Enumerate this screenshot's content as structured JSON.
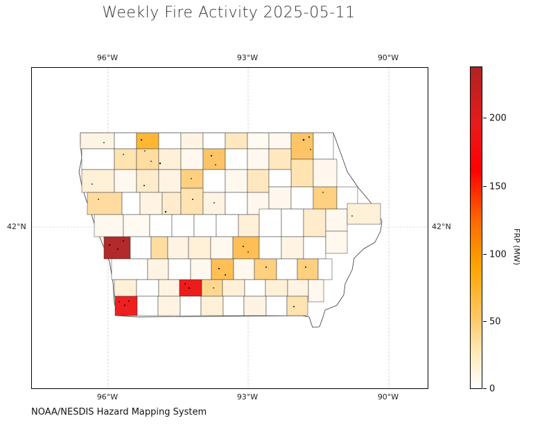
{
  "title": "Weekly Fire Activity 2025-05-11",
  "source": "NOAA/NESDIS Hazard Mapping System",
  "map": {
    "lon_ticks": [
      "96°W",
      "93°W",
      "90°W"
    ],
    "lat_ticks": [
      "42°N"
    ],
    "region": "Iowa counties"
  },
  "colorbar": {
    "label": "FRP (MW)",
    "ticks": [
      "0",
      "50",
      "100",
      "150",
      "200"
    ],
    "range": [
      0,
      237
    ],
    "colors": [
      "#ffffff",
      "#ffe8b0",
      "#ffa500",
      "#ff0000",
      "#b22222"
    ]
  }
}
